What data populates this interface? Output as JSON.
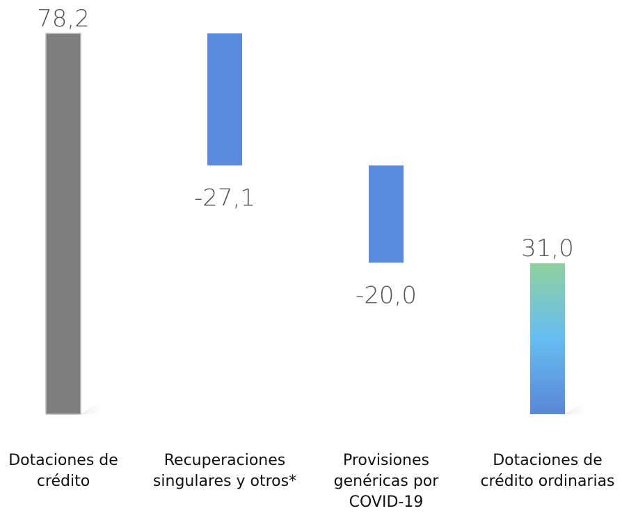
{
  "chart_data": {
    "type": "bar",
    "subtype": "waterfall",
    "title": "",
    "xlabel": "",
    "ylabel": "",
    "categories": [
      "Dotaciones de crédito",
      "Recuperaciones singulares y otros*",
      "Provisiones genéricas por COVID-19",
      "Dotaciones de crédito ordinarias"
    ],
    "category_lines": [
      [
        "Dotaciones de",
        "crédito"
      ],
      [
        "Recuperaciones",
        "singulares y otros*"
      ],
      [
        "Provisiones",
        "genéricas por",
        "COVID-19"
      ],
      [
        "Dotaciones de",
        "crédito ordinarias"
      ]
    ],
    "values": [
      78.2,
      -27.1,
      -20.0,
      31.0
    ],
    "value_labels": [
      "78,2",
      "-27,1",
      "-20,0",
      "31,0"
    ],
    "bar_kinds": [
      "total",
      "delta",
      "delta",
      "total"
    ],
    "ylim": [
      0,
      78.2
    ],
    "grid": false,
    "legend": "none",
    "colors": {
      "total_start": "#7f7f7f",
      "delta": "#5b8bde",
      "total_end_top": "#8fd19e",
      "total_end_mid": "#66bdf2",
      "total_end_bottom": "#5a86d6"
    }
  }
}
